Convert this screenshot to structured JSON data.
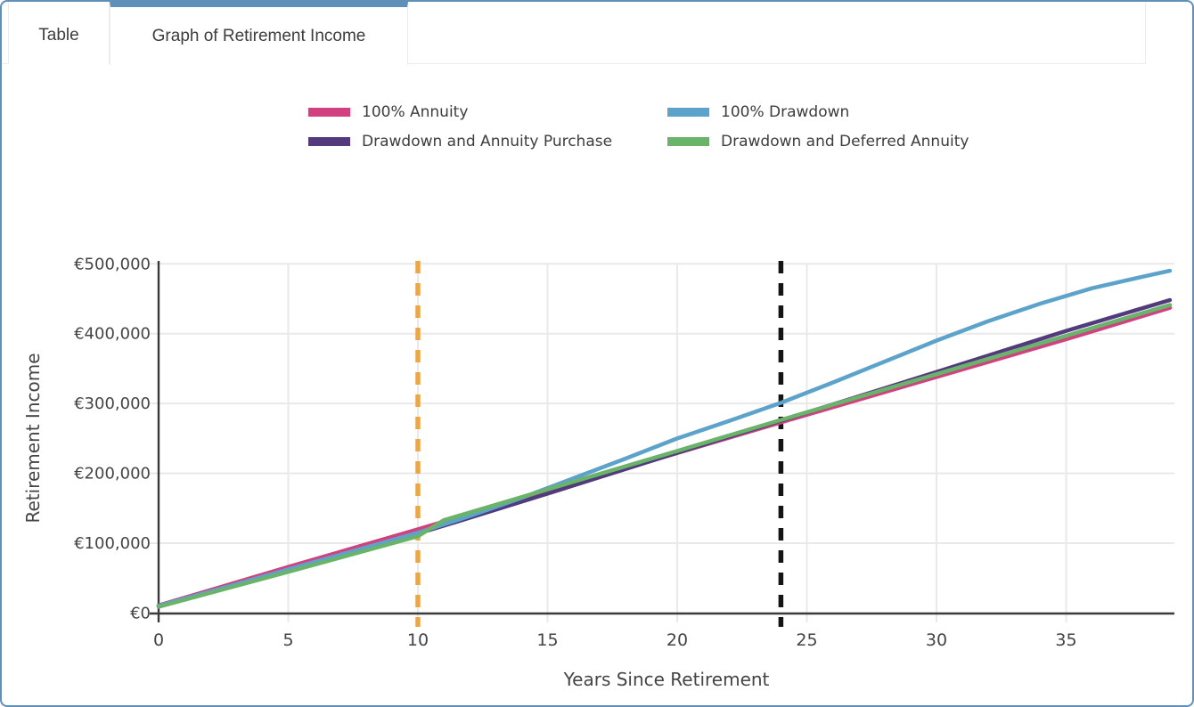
{
  "tabs": [
    {
      "label": "Table",
      "active": false
    },
    {
      "label": "Graph of Retirement Income",
      "active": true
    }
  ],
  "colors": {
    "accent_blue": "#5f90ba",
    "grid": "#e9e9e9",
    "axis": "#3a3a3a",
    "text": "#3d3d3d"
  },
  "chart_data": {
    "type": "line",
    "title": "",
    "grid": true,
    "x_axis": {
      "title": "Years Since Retirement",
      "range": [
        0,
        39.2
      ],
      "ticks": [
        {
          "value": 0,
          "label": "0"
        },
        {
          "value": 5,
          "label": "5"
        },
        {
          "value": 10,
          "label": "10"
        },
        {
          "value": 15,
          "label": "15"
        },
        {
          "value": 20,
          "label": "20"
        },
        {
          "value": 25,
          "label": "25"
        },
        {
          "value": 30,
          "label": "30"
        },
        {
          "value": 35,
          "label": "35"
        }
      ]
    },
    "y_axis": {
      "title": "Retirement Income",
      "range": [
        0,
        510000
      ],
      "ticks": [
        {
          "value": 0,
          "label": "€0"
        },
        {
          "value": 100000,
          "label": "€100,000"
        },
        {
          "value": 200000,
          "label": "€200,000"
        },
        {
          "value": 300000,
          "label": "€300,000"
        },
        {
          "value": 400000,
          "label": "€400,000"
        },
        {
          "value": 500000,
          "label": "€500,000"
        }
      ]
    },
    "legend": {
      "position": "top",
      "items": [
        {
          "label": "100% Annuity",
          "color": "#d2417f"
        },
        {
          "label": "100% Drawdown",
          "color": "#5ba3cb"
        },
        {
          "label": "Drawdown and Annuity Purchase",
          "color": "#533a7d"
        },
        {
          "label": "Drawdown and Deferred Annuity",
          "color": "#6ab36a"
        }
      ]
    },
    "series": [
      {
        "name": "100% Annuity",
        "color": "#d2417f",
        "points": [
          [
            0,
            11000
          ],
          [
            5,
            66000
          ],
          [
            10,
            120000
          ],
          [
            15,
            175000
          ],
          [
            20,
            229000
          ],
          [
            24,
            273000
          ],
          [
            30,
            338000
          ],
          [
            35,
            392000
          ],
          [
            39,
            437000
          ]
        ]
      },
      {
        "name": "Drawdown and Annuity Purchase",
        "color": "#533a7d",
        "points": [
          [
            0,
            10500
          ],
          [
            5,
            62000
          ],
          [
            10,
            114000
          ],
          [
            11,
            125000
          ],
          [
            15,
            171000
          ],
          [
            20,
            229500
          ],
          [
            24,
            275500
          ],
          [
            30,
            345000
          ],
          [
            35,
            404000
          ],
          [
            39,
            448000
          ]
        ]
      },
      {
        "name": "100% Drawdown",
        "color": "#5ba3cb",
        "points": [
          [
            0,
            10500
          ],
          [
            2,
            31000
          ],
          [
            4,
            52000
          ],
          [
            6,
            73000
          ],
          [
            8,
            94000
          ],
          [
            10,
            115000
          ],
          [
            12,
            139000
          ],
          [
            14,
            165000
          ],
          [
            16,
            193000
          ],
          [
            18,
            221000
          ],
          [
            20,
            250000
          ],
          [
            22,
            275000
          ],
          [
            24,
            301000
          ],
          [
            26,
            330000
          ],
          [
            28,
            360000
          ],
          [
            30,
            390000
          ],
          [
            32,
            418000
          ],
          [
            34,
            443000
          ],
          [
            36,
            465000
          ],
          [
            38,
            482000
          ],
          [
            39,
            490000
          ]
        ]
      },
      {
        "name": "Drawdown and Deferred Annuity",
        "color": "#6ab36a",
        "points": [
          [
            0,
            9000
          ],
          [
            5,
            59000
          ],
          [
            10,
            110000
          ],
          [
            11,
            133000
          ],
          [
            15,
            177000
          ],
          [
            20,
            232000
          ],
          [
            24,
            276500
          ],
          [
            30,
            342000
          ],
          [
            35,
            397000
          ],
          [
            39,
            441000
          ]
        ]
      }
    ],
    "reference_lines": [
      {
        "axis": "x",
        "value": 10,
        "style": "dashed",
        "color": "#f0a63c",
        "name": "year-10-marker"
      },
      {
        "axis": "x",
        "value": 24,
        "style": "dashed",
        "color": "#141414",
        "name": "year-24-marker"
      }
    ]
  }
}
